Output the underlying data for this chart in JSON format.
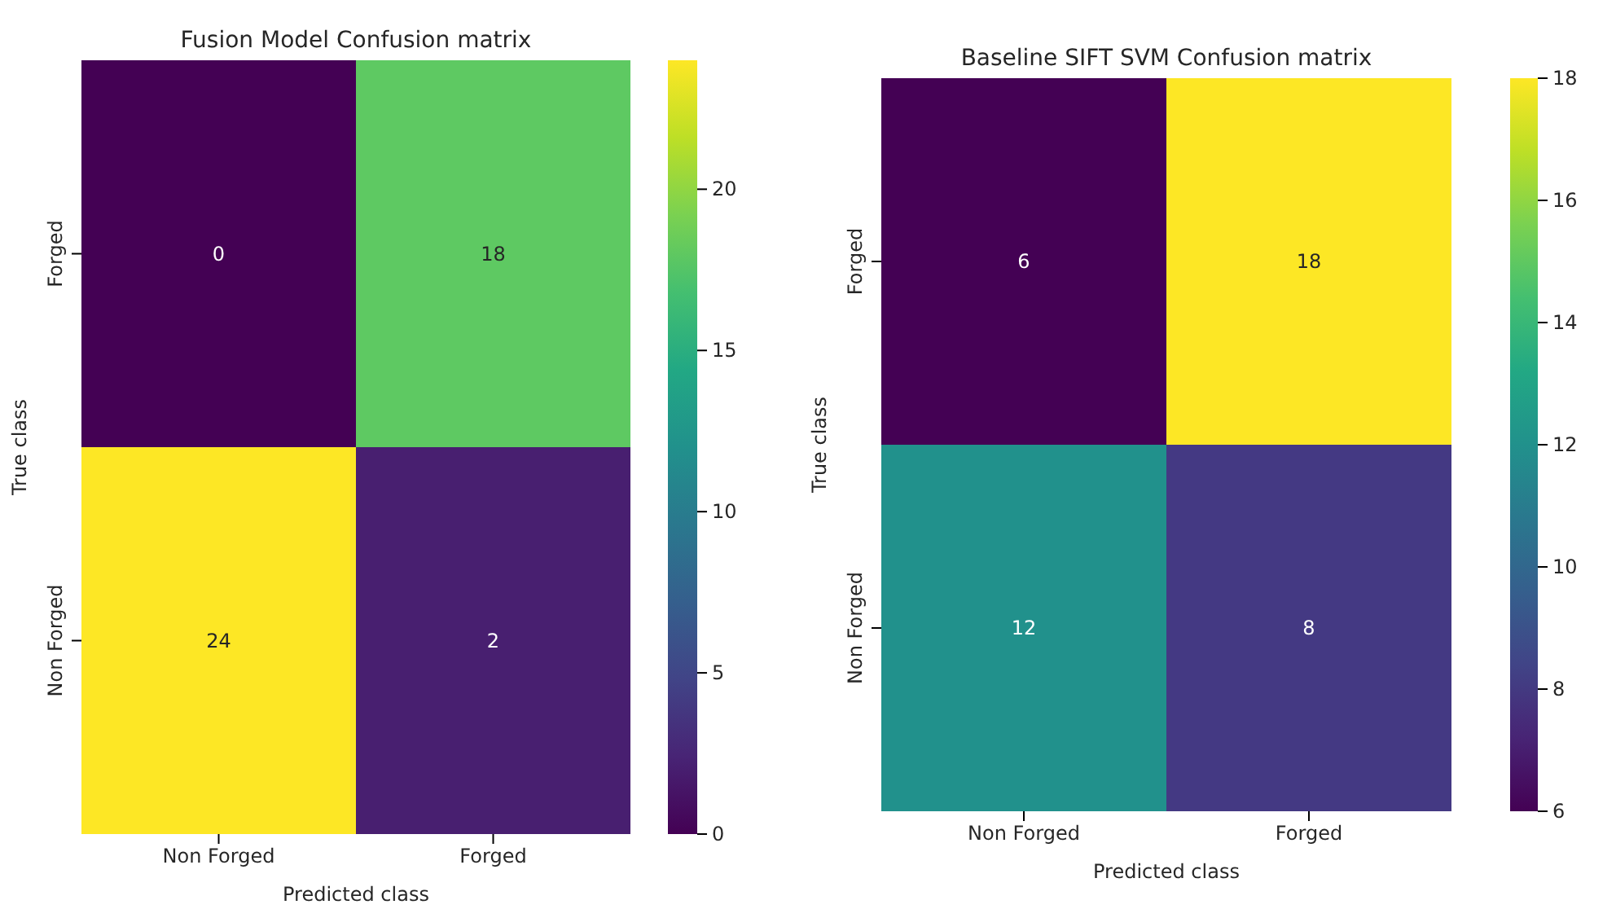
{
  "chart_data": [
    {
      "type": "heatmap",
      "title": "Fusion Model Confusion matrix",
      "xlabel": "Predicted class",
      "ylabel": "True class",
      "categories": [
        "Non Forged",
        "Forged"
      ],
      "y_categories": [
        "Forged",
        "Non Forged"
      ],
      "cells": [
        [
          0,
          18
        ],
        [
          24,
          2
        ]
      ],
      "clim": [
        0,
        24
      ],
      "cticks": [
        0,
        5,
        10,
        15,
        20
      ],
      "data_labels": true
    },
    {
      "type": "heatmap",
      "title": "Baseline SIFT SVM Confusion matrix",
      "xlabel": "Predicted class",
      "ylabel": "True class",
      "categories": [
        "Non Forged",
        "Forged"
      ],
      "y_categories": [
        "Forged",
        "Non Forged"
      ],
      "cells": [
        [
          6,
          18
        ],
        [
          12,
          8
        ]
      ],
      "clim": [
        6,
        18
      ],
      "cticks": [
        6,
        8,
        10,
        12,
        14,
        16,
        18
      ],
      "data_labels": true
    }
  ]
}
